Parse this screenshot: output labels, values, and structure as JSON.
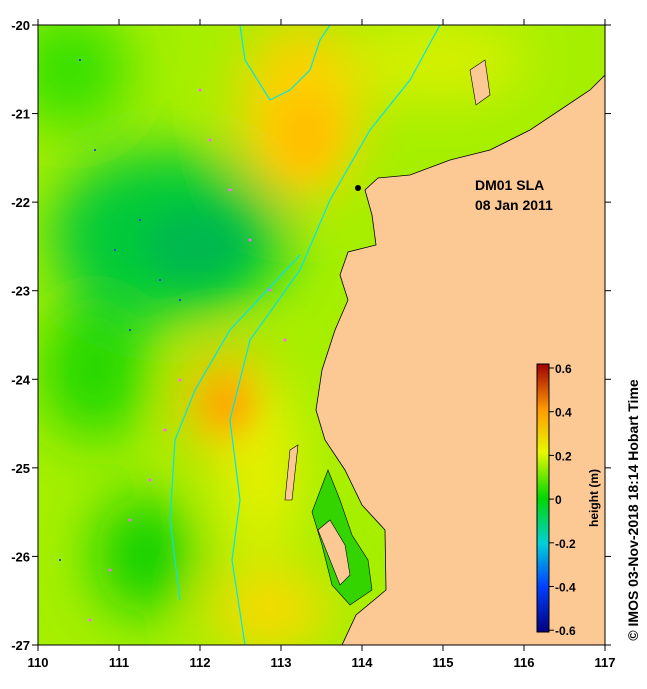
{
  "map": {
    "title": "DM01 SLA",
    "date": "08 Jan 2011",
    "x_ticks": [
      "110",
      "111",
      "112",
      "113",
      "114",
      "115",
      "116",
      "117"
    ],
    "y_ticks": [
      "-20",
      "-21",
      "-22",
      "-23",
      "-24",
      "-25",
      "-26",
      "-27"
    ],
    "lon_range": [
      110,
      117
    ],
    "lat_range": [
      -27,
      -20
    ]
  },
  "colorbar": {
    "label": "height (m)",
    "ticks": [
      "0.6",
      "0.4",
      "0.2",
      "0",
      "-0.2",
      "-0.4",
      "-0.6"
    ],
    "range": [
      -0.6,
      0.6
    ]
  },
  "credit": "© IMOS 03-Nov-2018 18:14 Hobart Time",
  "colors": {
    "land": "#fcc995",
    "coast": "#00e5ee",
    "ocean_base": "#a6ef00"
  }
}
